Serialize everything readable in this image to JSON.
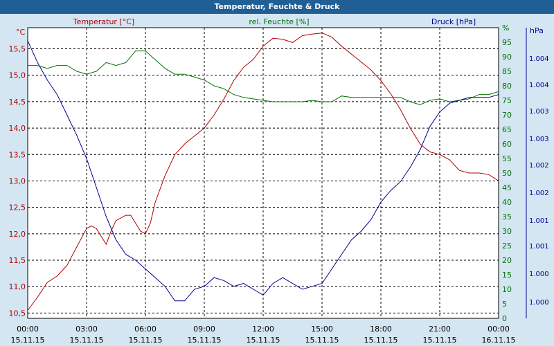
{
  "chart_data": {
    "type": "line",
    "title": "Temperatur, Feuchte & Druck",
    "x": {
      "ticks": [
        {
          "time": "00:00",
          "date": "15.11.15"
        },
        {
          "time": "03:00",
          "date": "15.11.15"
        },
        {
          "time": "06:00",
          "date": "15.11.15"
        },
        {
          "time": "09:00",
          "date": "15.11.15"
        },
        {
          "time": "12:00",
          "date": "15.11.15"
        },
        {
          "time": "15:00",
          "date": "15.11.15"
        },
        {
          "time": "18:00",
          "date": "15.11.15"
        },
        {
          "time": "21:00",
          "date": "15.11.15"
        },
        {
          "time": "00:00",
          "date": "16.11.15"
        }
      ],
      "range_hours": [
        0,
        24
      ]
    },
    "axes": {
      "temperature": {
        "label": "Temperatur [°C]",
        "unit": "°C",
        "color": "#b00000",
        "ylim": [
          10.4,
          15.9
        ],
        "ticks": [
          "10,5",
          "11,0",
          "11,5",
          "12,0",
          "12,5",
          "13,0",
          "13,5",
          "14,0",
          "14,5",
          "15,0",
          "15,5"
        ]
      },
      "humidity": {
        "label": "rel. Feuchte [%]",
        "unit": "%",
        "color": "#007000",
        "ylim": [
          0,
          100
        ],
        "ticks": [
          "0",
          "5",
          "10",
          "15",
          "20",
          "25",
          "30",
          "35",
          "40",
          "45",
          "50",
          "55",
          "60",
          "65",
          "70",
          "75",
          "80",
          "85",
          "90",
          "95",
          "%"
        ]
      },
      "pressure": {
        "label": "Druck [hPa]",
        "unit": "hPa",
        "color": "#000090",
        "ticks": [
          "1.000",
          "1.000",
          "1.001",
          "1.001",
          "1.002",
          "1.002",
          "1.003",
          "1.003",
          "1.004",
          "1.004"
        ]
      }
    },
    "grid": true,
    "series": [
      {
        "name": "Temperatur [°C]",
        "axis": "temperature",
        "color": "#b00000",
        "points": [
          [
            0,
            10.55
          ],
          [
            0.5,
            10.8
          ],
          [
            1,
            11.08
          ],
          [
            1.5,
            11.2
          ],
          [
            2,
            11.4
          ],
          [
            2.5,
            11.75
          ],
          [
            3,
            12.1
          ],
          [
            3.25,
            12.15
          ],
          [
            3.5,
            12.1
          ],
          [
            3.75,
            11.95
          ],
          [
            4.0,
            11.8
          ],
          [
            4.25,
            12.05
          ],
          [
            4.5,
            12.25
          ],
          [
            5,
            12.35
          ],
          [
            5.25,
            12.35
          ],
          [
            5.5,
            12.2
          ],
          [
            5.75,
            12.05
          ],
          [
            6.0,
            12.0
          ],
          [
            6.25,
            12.2
          ],
          [
            6.5,
            12.6
          ],
          [
            7,
            13.1
          ],
          [
            7.5,
            13.5
          ],
          [
            8,
            13.7
          ],
          [
            8.5,
            13.85
          ],
          [
            9,
            14.0
          ],
          [
            9.5,
            14.25
          ],
          [
            10,
            14.55
          ],
          [
            10.5,
            14.9
          ],
          [
            11,
            15.15
          ],
          [
            11.5,
            15.3
          ],
          [
            12,
            15.55
          ],
          [
            12.5,
            15.7
          ],
          [
            13,
            15.68
          ],
          [
            13.5,
            15.62
          ],
          [
            14,
            15.75
          ],
          [
            14.5,
            15.78
          ],
          [
            15,
            15.8
          ],
          [
            15.5,
            15.72
          ],
          [
            16,
            15.55
          ],
          [
            16.5,
            15.4
          ],
          [
            17,
            15.25
          ],
          [
            17.5,
            15.1
          ],
          [
            18,
            14.9
          ],
          [
            18.5,
            14.65
          ],
          [
            19,
            14.35
          ],
          [
            19.5,
            14.0
          ],
          [
            20,
            13.7
          ],
          [
            20.5,
            13.55
          ],
          [
            21,
            13.5
          ],
          [
            21.5,
            13.4
          ],
          [
            22,
            13.2
          ],
          [
            22.5,
            13.15
          ],
          [
            23,
            13.15
          ],
          [
            23.5,
            13.12
          ],
          [
            24,
            13.0
          ]
        ]
      },
      {
        "name": "rel. Feuchte [%]",
        "axis": "humidity",
        "color": "#007000",
        "points": [
          [
            0,
            87
          ],
          [
            0.5,
            87
          ],
          [
            1,
            86
          ],
          [
            1.5,
            87
          ],
          [
            2,
            87
          ],
          [
            2.5,
            85
          ],
          [
            3,
            84
          ],
          [
            3.5,
            85
          ],
          [
            4,
            88
          ],
          [
            4.5,
            87
          ],
          [
            5,
            88
          ],
          [
            5.5,
            92
          ],
          [
            6,
            92
          ],
          [
            6.5,
            89
          ],
          [
            7,
            86
          ],
          [
            7.5,
            84
          ],
          [
            8,
            84
          ],
          [
            8.5,
            83
          ],
          [
            9,
            82
          ],
          [
            9.5,
            80
          ],
          [
            10,
            79
          ],
          [
            10.5,
            77
          ],
          [
            11,
            76
          ],
          [
            11.5,
            75.5
          ],
          [
            12,
            75
          ],
          [
            12.5,
            74.5
          ],
          [
            13,
            74.5
          ],
          [
            13.5,
            74.5
          ],
          [
            14,
            74.5
          ],
          [
            14.5,
            75
          ],
          [
            15,
            74.5
          ],
          [
            15.5,
            74.5
          ],
          [
            16,
            76.5
          ],
          [
            16.5,
            76
          ],
          [
            17,
            76
          ],
          [
            17.5,
            76
          ],
          [
            18,
            76
          ],
          [
            18.5,
            76
          ],
          [
            19,
            76
          ],
          [
            19.5,
            74.5
          ],
          [
            20,
            73.5
          ],
          [
            20.5,
            75
          ],
          [
            21,
            75.5
          ],
          [
            21.5,
            74.5
          ],
          [
            22,
            75
          ],
          [
            22.5,
            75.5
          ],
          [
            23,
            77
          ],
          [
            23.5,
            77
          ],
          [
            24,
            78
          ]
        ]
      },
      {
        "name": "Druck [hPa]",
        "axis": "pressure",
        "color": "#000090",
        "points": [
          [
            0,
            95.5
          ],
          [
            0.5,
            88
          ],
          [
            1,
            82
          ],
          [
            1.5,
            77
          ],
          [
            2,
            70
          ],
          [
            2.5,
            63
          ],
          [
            3,
            55
          ],
          [
            3.5,
            45
          ],
          [
            4,
            35
          ],
          [
            4.5,
            27
          ],
          [
            5,
            22
          ],
          [
            5.5,
            20
          ],
          [
            6,
            17
          ],
          [
            6.5,
            14
          ],
          [
            7,
            11
          ],
          [
            7.5,
            6
          ],
          [
            8,
            6
          ],
          [
            8.5,
            10
          ],
          [
            9,
            11
          ],
          [
            9.5,
            14
          ],
          [
            10,
            13
          ],
          [
            10.5,
            11
          ],
          [
            11,
            12
          ],
          [
            11.5,
            10
          ],
          [
            12,
            8
          ],
          [
            12.5,
            12
          ],
          [
            13,
            14
          ],
          [
            13.5,
            12
          ],
          [
            14,
            10
          ],
          [
            14.5,
            11
          ],
          [
            15,
            12
          ],
          [
            15.5,
            17
          ],
          [
            16,
            22
          ],
          [
            16.5,
            27
          ],
          [
            17,
            30
          ],
          [
            17.5,
            34
          ],
          [
            18,
            40
          ],
          [
            18.5,
            44
          ],
          [
            19,
            47
          ],
          [
            19.5,
            52
          ],
          [
            20,
            58
          ],
          [
            20.5,
            66
          ],
          [
            21,
            71
          ],
          [
            21.5,
            74
          ],
          [
            22,
            75
          ],
          [
            22.5,
            76
          ],
          [
            23,
            76
          ],
          [
            23.5,
            76
          ],
          [
            24,
            77
          ]
        ]
      }
    ]
  }
}
